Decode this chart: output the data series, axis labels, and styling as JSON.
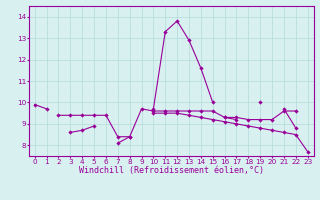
{
  "xlabel": "Windchill (Refroidissement éolien,°C)",
  "x": [
    0,
    1,
    2,
    3,
    4,
    5,
    6,
    7,
    8,
    9,
    10,
    11,
    12,
    13,
    14,
    15,
    16,
    17,
    18,
    19,
    20,
    21,
    22,
    23
  ],
  "line1": [
    9.9,
    9.7,
    null,
    null,
    null,
    null,
    null,
    null,
    null,
    null,
    9.7,
    13.3,
    13.8,
    12.9,
    11.6,
    10.0,
    null,
    null,
    null,
    10.0,
    null,
    null,
    null,
    null
  ],
  "line2": [
    null,
    null,
    9.4,
    9.4,
    9.4,
    9.4,
    9.4,
    8.4,
    8.4,
    9.7,
    9.6,
    9.6,
    9.6,
    9.6,
    9.6,
    9.6,
    9.3,
    9.3,
    9.2,
    9.2,
    9.2,
    9.6,
    9.6,
    null
  ],
  "line3": [
    null,
    null,
    null,
    8.6,
    8.7,
    8.9,
    null,
    8.1,
    8.4,
    null,
    null,
    null,
    null,
    null,
    null,
    null,
    9.3,
    9.2,
    null,
    null,
    null,
    9.7,
    8.8,
    null
  ],
  "line4": [
    null,
    null,
    null,
    null,
    null,
    null,
    null,
    null,
    null,
    null,
    9.5,
    9.5,
    9.5,
    9.4,
    9.3,
    9.2,
    9.1,
    9.0,
    8.9,
    8.8,
    8.7,
    8.6,
    8.5,
    7.7
  ],
  "bg_color": "#d8f0f0",
  "line_color": "#990099",
  "grid_color": "#b8dede",
  "ylim": [
    7.5,
    14.5
  ],
  "yticks": [
    8,
    9,
    10,
    11,
    12,
    13,
    14
  ],
  "xlim": [
    -0.5,
    23.5
  ],
  "tick_fontsize": 5.2,
  "xlabel_fontsize": 6.0
}
